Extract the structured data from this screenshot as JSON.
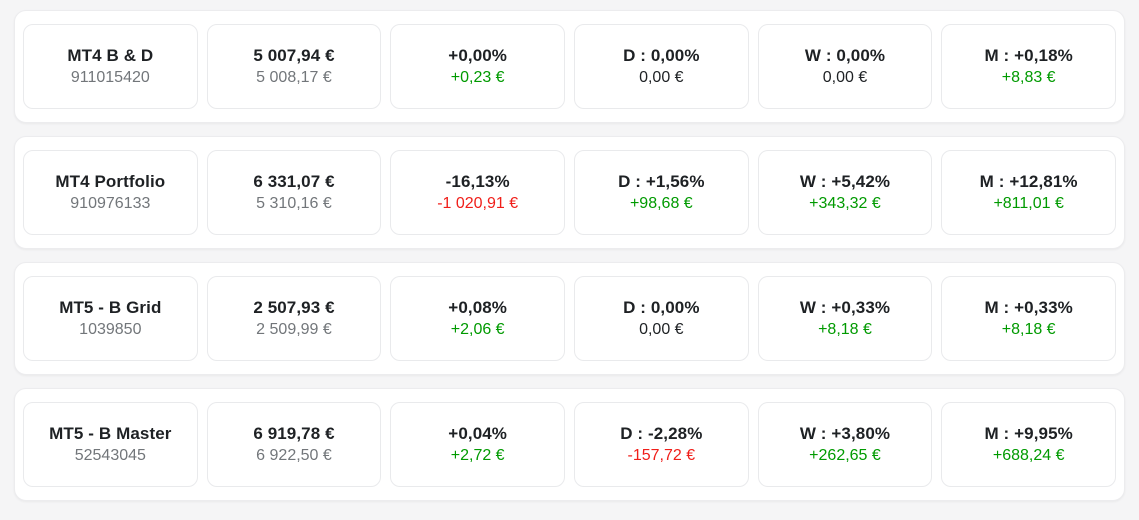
{
  "colors": {
    "positive": "#009a00",
    "negative": "#f01e19",
    "neutral_text": "#1e2124",
    "muted_text": "#72767a",
    "card_background": "#ffffff",
    "page_background": "#f5f5f6",
    "card_border": "#e9eaec"
  },
  "rows": [
    {
      "name": "MT4 B & D",
      "account": "911015420",
      "balance": "5 007,94 €",
      "equity": "5 008,17 €",
      "total": {
        "pct": "+0,00%",
        "value": "+0,23 €",
        "tone": "positive"
      },
      "daily": {
        "label": "D : 0,00%",
        "value": "0,00 €",
        "tone": "neutral"
      },
      "weekly": {
        "label": "W : 0,00%",
        "value": "0,00 €",
        "tone": "neutral"
      },
      "monthly": {
        "label": "M : +0,18%",
        "value": "+8,83 €",
        "tone": "positive"
      }
    },
    {
      "name": "MT4 Portfolio",
      "account": "910976133",
      "balance": "6 331,07 €",
      "equity": "5 310,16 €",
      "total": {
        "pct": "-16,13%",
        "value": "-1 020,91 €",
        "tone": "negative"
      },
      "daily": {
        "label": "D : +1,56%",
        "value": "+98,68 €",
        "tone": "positive"
      },
      "weekly": {
        "label": "W : +5,42%",
        "value": "+343,32 €",
        "tone": "positive"
      },
      "monthly": {
        "label": "M : +12,81%",
        "value": "+811,01 €",
        "tone": "positive"
      }
    },
    {
      "name": "MT5 - B Grid",
      "account": "1039850",
      "balance": "2 507,93 €",
      "equity": "2 509,99 €",
      "total": {
        "pct": "+0,08%",
        "value": "+2,06 €",
        "tone": "positive"
      },
      "daily": {
        "label": "D : 0,00%",
        "value": "0,00 €",
        "tone": "neutral"
      },
      "weekly": {
        "label": "W : +0,33%",
        "value": "+8,18 €",
        "tone": "positive"
      },
      "monthly": {
        "label": "M : +0,33%",
        "value": "+8,18 €",
        "tone": "positive"
      }
    },
    {
      "name": "MT5 - B Master",
      "account": "52543045",
      "balance": "6 919,78 €",
      "equity": "6 922,50 €",
      "total": {
        "pct": "+0,04%",
        "value": "+2,72 €",
        "tone": "positive"
      },
      "daily": {
        "label": "D : -2,28%",
        "value": "-157,72 €",
        "tone": "negative"
      },
      "weekly": {
        "label": "W : +3,80%",
        "value": "+262,65 €",
        "tone": "positive"
      },
      "monthly": {
        "label": "M : +9,95%",
        "value": "+688,24 €",
        "tone": "positive"
      }
    }
  ]
}
